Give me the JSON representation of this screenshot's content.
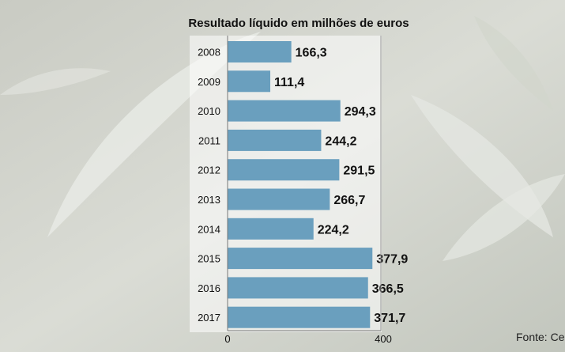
{
  "chart_data": {
    "type": "bar",
    "orientation": "horizontal",
    "title": "Resultado líquido em milhões de euros",
    "categories": [
      "2008",
      "2009",
      "2010",
      "2011",
      "2012",
      "2013",
      "2014",
      "2015",
      "2016",
      "2017"
    ],
    "values": [
      166.3,
      111.4,
      294.3,
      244.2,
      291.5,
      266.7,
      224.2,
      377.9,
      366.5,
      371.7
    ],
    "value_labels": [
      "166,3",
      "111,4",
      "294,3",
      "244,2",
      "291,5",
      "266,7",
      "224,2",
      "377,9",
      "366,5",
      "371,7"
    ],
    "xlim": [
      0,
      400
    ],
    "x_ticks": [
      "0",
      "400"
    ],
    "xlabel": "",
    "ylabel": "",
    "bar_color": "#6a9fbe",
    "source": "Fonte: Cel"
  }
}
